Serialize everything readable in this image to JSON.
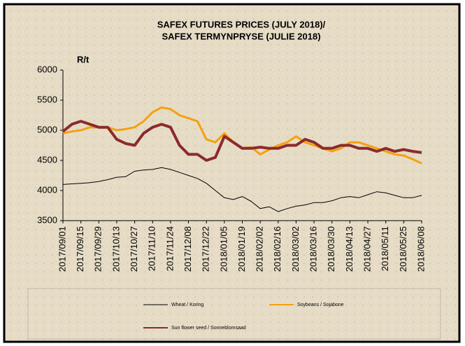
{
  "chart_data": {
    "type": "line",
    "title": "SAFEX FUTURES PRICES (JULY 2018)/",
    "subtitle": "SAFEX TERMYNPRYSE (JULIE 2018)",
    "y_label": "R/t",
    "categories": [
      "2017/09/01",
      null,
      "2017/09/15",
      null,
      "2017/09/29",
      null,
      "2017/10/13",
      null,
      "2017/10/27",
      null,
      "2017/11/10",
      null,
      "2017/11/24",
      null,
      "2017/12/08",
      null,
      "2017/12/22",
      null,
      "2018/01/05",
      null,
      "2018/01/19",
      null,
      "2018/02/02",
      null,
      "2018/02/16",
      null,
      "2018/03/02",
      null,
      "2018/03/16",
      null,
      "2018/03/30",
      null,
      "2018/04/13",
      null,
      "2018/04/27",
      null,
      "2018/05/11",
      null,
      "2018/05/25",
      null,
      "2018/06/08"
    ],
    "series": [
      {
        "name": "Wheat / Koring",
        "color": "#000000",
        "values": [
          4100,
          4110,
          4120,
          4130,
          4150,
          4180,
          4220,
          4230,
          4320,
          4340,
          4350,
          4380,
          4350,
          4300,
          4250,
          4200,
          4120,
          4000,
          3880,
          3850,
          3900,
          3820,
          3700,
          3730,
          3650,
          3700,
          3740,
          3760,
          3800,
          3800,
          3830,
          3880,
          3900,
          3880,
          3930,
          3980,
          3960,
          3920,
          3880,
          3880,
          3920
        ]
      },
      {
        "name": "Soybeans / Sojabone",
        "color": "#f5a00f",
        "values": [
          4950,
          4980,
          5000,
          5050,
          5050,
          5050,
          5000,
          5020,
          5050,
          5150,
          5300,
          5380,
          5350,
          5250,
          5200,
          5150,
          4850,
          4800,
          4950,
          4800,
          4700,
          4720,
          4600,
          4680,
          4750,
          4800,
          4900,
          4800,
          4750,
          4700,
          4650,
          4700,
          4800,
          4800,
          4750,
          4700,
          4650,
          4600,
          4580,
          4520,
          4450
        ]
      },
      {
        "name": "Sun flower seed / Sonneblomsaad",
        "color": "#8b2b2b",
        "values": [
          4980,
          5100,
          5150,
          5100,
          5050,
          5050,
          4850,
          4780,
          4750,
          4950,
          5050,
          5100,
          5050,
          4750,
          4600,
          4600,
          4500,
          4550,
          4900,
          4800,
          4700,
          4700,
          4720,
          4700,
          4700,
          4750,
          4750,
          4850,
          4800,
          4700,
          4700,
          4750,
          4750,
          4700,
          4700,
          4650,
          4700,
          4650,
          4680,
          4650,
          4630
        ]
      }
    ],
    "ylim": [
      3500,
      6000
    ],
    "yticks": [
      3500,
      4000,
      4500,
      5000,
      5500,
      6000
    ],
    "grid": false,
    "legend": "bottom"
  }
}
